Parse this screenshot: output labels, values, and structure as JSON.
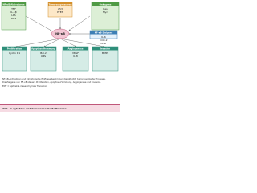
{
  "nodes": [
    {
      "label": "NF-κB-Aktivatoren",
      "lines": [
        "TNF",
        "IL-1β",
        "LPS",
        "ROS"
      ]
    },
    {
      "label": "Tumorsuppressoren",
      "lines": [
        "p53",
        "PTEN"
      ]
    },
    {
      "label": "Onkogene",
      "lines": [
        "Ras",
        "Myc"
      ]
    },
    {
      "label": "NF-κB-Zielgene",
      "lines": [
        "IL-6",
        "COX-2",
        "VEGF"
      ]
    },
    {
      "label": "Proliferation",
      "lines": [
        "Cyclin D1"
      ]
    },
    {
      "label": "Apoptose-Hemmung",
      "lines": [
        "Bcl-2",
        "IAPs"
      ]
    },
    {
      "label": "Angiogenese",
      "lines": [
        "VEGF",
        "IL-8"
      ]
    },
    {
      "label": "Invasion",
      "lines": [
        "MMPs"
      ]
    }
  ],
  "center": "NF-κB",
  "text": [
    "NF-κB-Aktivatoren und inhibitorische Einflüsse bestimmen die Aktivität tumorassoziierter Prozesse.",
    "Die Zielgene von NF-κB steuern Proliferation, Apoptose-Hemmung, Angiogenese und Invasion.",
    "EMT = epithelial-mesenchymale Transition"
  ],
  "caption": "Abb. 3: Zytokine und tumorassoziierte Prozesse"
}
